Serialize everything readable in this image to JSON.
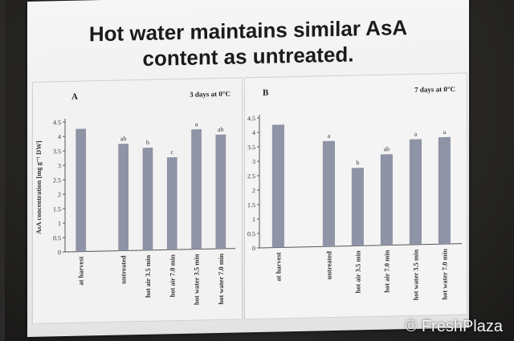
{
  "slide": {
    "title": "Hot water maintains similar AsA content as untreated."
  },
  "watermark": "© FreshPlaza",
  "colors": {
    "bar": "#8f93a6",
    "axis": "#555555"
  },
  "chart_data": [
    {
      "type": "bar",
      "panel_label": "A",
      "title": "3 days at 0°C",
      "ylabel": "AsA concentration [mg g⁻¹ DW]",
      "ylim": [
        0,
        4.5
      ],
      "yticks": [
        "0",
        "0.5",
        "1",
        "1.5",
        "2",
        "2.5",
        "3",
        "3.5",
        "4",
        "4.5"
      ],
      "categories": [
        "at harvest",
        "untreated",
        "hot air 3.5 min",
        "hot air 7.0 min",
        "hot water 3.5 min",
        "hot water 7.0 min"
      ],
      "values": [
        4.25,
        3.7,
        3.55,
        3.2,
        4.15,
        3.95
      ],
      "letters": [
        "",
        "ab",
        "b",
        "c",
        "a",
        "ab"
      ]
    },
    {
      "type": "bar",
      "panel_label": "B",
      "title": "7 days at 0°C",
      "ylabel": "",
      "ylim": [
        0,
        4.5
      ],
      "yticks": [
        "0",
        "0.5",
        "1",
        "1.5",
        "2",
        "2.5",
        "3",
        "3.5",
        "4",
        "4.5"
      ],
      "categories": [
        "at harvest",
        "untreated",
        "hot air 3.5 min",
        "hot air 7.0 min",
        "hot water 3.5 min",
        "hot water 7.0 min"
      ],
      "values": [
        4.25,
        3.65,
        2.7,
        3.15,
        3.65,
        3.7
      ],
      "letters": [
        "",
        "a",
        "b",
        "ab",
        "a",
        "a"
      ]
    }
  ]
}
